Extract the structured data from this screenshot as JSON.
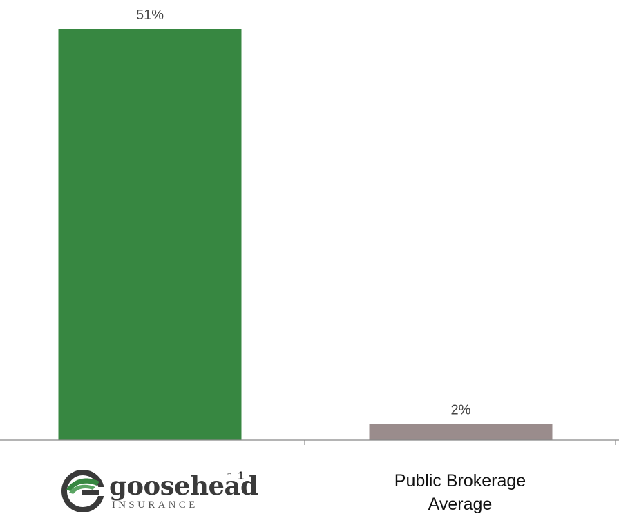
{
  "chart_data": {
    "type": "bar",
    "categories": [
      "goosehead INSURANCE",
      "Public Brokerage Average"
    ],
    "values": [
      51,
      2
    ],
    "value_labels": [
      "51%",
      "2%"
    ],
    "colors": [
      "#378741",
      "#9a8c8c"
    ],
    "ylim": [
      0,
      51
    ],
    "grid": false,
    "legend": "none"
  },
  "x_axis": {
    "logo": {
      "wordmark": "goosehead",
      "tagline": "INSURANCE",
      "trademark": "℠",
      "icon": "goosehead-g-logo-icon"
    },
    "footnote": "1",
    "category_2_line_1": "Public Brokerage",
    "category_2_line_2": "Average"
  }
}
